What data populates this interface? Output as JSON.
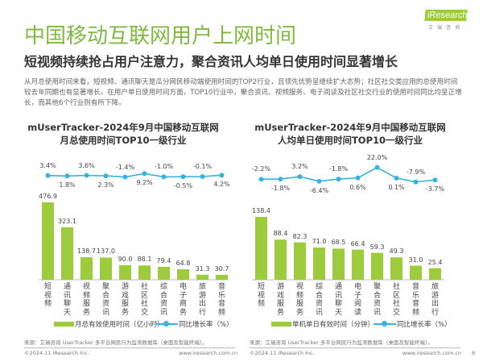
{
  "header": {
    "title": "中国移动互联网用户上网时间",
    "subtitle": "短视频持续抢占用户注意力，聚合资讯人均单日使用时间显著增长",
    "logo_text": "iResearch",
    "logo_sub": "艾瑞咨询"
  },
  "paragraph": "从月总使用时间来看，短视频、通讯聊天是瓜分网民移动端使用时间的TOP2行业，且领先优势呈继续扩大态势；社区社交类应用的总使用时间较去年同期也有显著增长。在用户单日使用时间方面，TOP10行业中，聚合资讯、视频服务、电子阅读及社区社交行业的使用时间同比均呈正增长，而其他6个行业则有所下降。",
  "colors": {
    "bar": "#9ccb3b",
    "line": "#33b4de",
    "title": "#80b940"
  },
  "chart_data": [
    {
      "type": "bar+line",
      "title_line1": "mUserTracker-2024年9月中国移动互联网",
      "title_line2": "月总使用时间TOP10一级行业",
      "categories": [
        "短视频",
        "通讯聊天",
        "视频服务",
        "聚合资讯",
        "游戏服务",
        "社区社交",
        "综合资讯",
        "电子商务",
        "旅游出行",
        "音乐音频"
      ],
      "series": [
        {
          "name": "月总有效使用时间（亿小时）",
          "type": "bar",
          "values": [
            476.9,
            323.1,
            138.7,
            137.0,
            90.0,
            88.1,
            79.4,
            64.8,
            31.3,
            30.7
          ],
          "labels": [
            "476.9",
            "323.1",
            "138.7",
            "137.0",
            "90.0",
            "88.1",
            "79.4",
            "64.8",
            "31.3",
            "30.7"
          ]
        },
        {
          "name": "同比增长率（%）",
          "type": "line",
          "values": [
            3.4,
            1.8,
            3.6,
            2.3,
            -1.4,
            9.2,
            -1.0,
            -0.5,
            -0.1,
            4.2
          ],
          "labels": [
            "3.4%",
            "1.8%",
            "3.6%",
            "2.3%",
            "-1.4%",
            "9.2%",
            "-1.0%",
            "-0.5%",
            "-0.1%",
            "4.2%"
          ]
        }
      ],
      "source": "来源：艾瑞咨询 UserTracker 多平台网民行为监测数据库（桌面及智能终端）。"
    },
    {
      "type": "bar+line",
      "title_line1": "mUserTracker-2024年9月中国移动互联网",
      "title_line2": "人均单日使用时间TOP10一级行业",
      "categories": [
        "短视频",
        "游戏服务",
        "视频服务",
        "综合资讯",
        "通讯聊天",
        "电子阅读",
        "聚合资讯",
        "社区社交",
        "音乐音频",
        "旅游出行"
      ],
      "series": [
        {
          "name": "单机单日有效时间（分钟）",
          "type": "bar",
          "values": [
            138.4,
            88.4,
            82.3,
            71.0,
            68.5,
            66.4,
            59.3,
            49.3,
            31.0,
            25.4
          ],
          "labels": [
            "138.4",
            "88.4",
            "82.3",
            "71.0",
            "68.5",
            "66.4",
            "59.3",
            "49.3",
            "31.0",
            "25.4"
          ]
        },
        {
          "name": "同比增长率（%）",
          "type": "line",
          "values": [
            -2.2,
            -1.8,
            3.2,
            -6.4,
            -1.8,
            0.6,
            22.0,
            0.1,
            -7.9,
            -3.7
          ],
          "labels": [
            "-2.2%",
            "-1.8%",
            "3.2%",
            "-6.4%",
            "-1.8%",
            "0.6%",
            "22.0%",
            "0.1%",
            "-7.9%",
            "-3.7%"
          ]
        }
      ],
      "source": "来源：艾瑞咨询 UserTracker 多平台网民行为监测数据库（桌面及智能终端）。"
    }
  ],
  "footer": {
    "copyright": "©2024.11 iResearch Inc.",
    "website": "www.iresearch.com.cn",
    "page": "8"
  }
}
